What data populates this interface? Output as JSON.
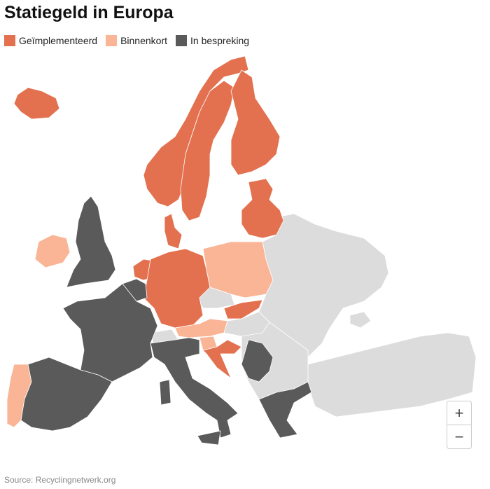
{
  "header": {
    "title": "Statiegeld in Europa"
  },
  "legend": [
    {
      "label": "Geïmplementeerd",
      "color": "#e3714f"
    },
    {
      "label": "Binnenkort",
      "color": "#f9b596"
    },
    {
      "label": "In bespreking",
      "color": "#5a5a5a"
    }
  ],
  "zoom": {
    "in": "+",
    "out": "−"
  },
  "footer": {
    "source": "Source: Recyclingnetwerk.org"
  }
}
